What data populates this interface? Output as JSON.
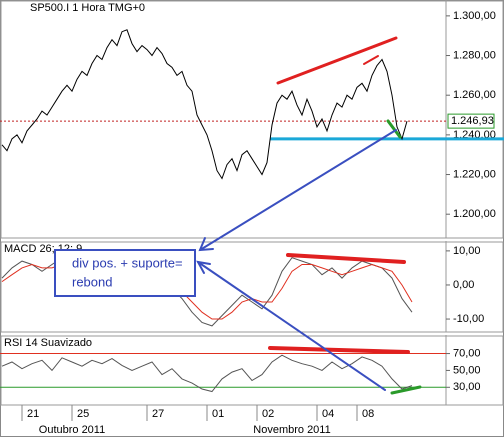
{
  "chart_data": [
    {
      "type": "line",
      "title": "SP500.I 1 Hora TMG+0",
      "xlim": [
        0,
        82
      ],
      "ylim": [
        1188,
        1308
      ],
      "yticks": [
        {
          "value": 1300,
          "label": "1.300,00"
        },
        {
          "value": 1280,
          "label": "1.280,00"
        },
        {
          "value": 1260,
          "label": "1.260,00"
        },
        {
          "value": 1240,
          "label": "1.240,00"
        },
        {
          "value": 1220,
          "label": "1.220,00"
        },
        {
          "value": 1200,
          "label": "1.200,00"
        }
      ],
      "x": [
        0,
        1,
        2,
        3,
        4,
        5,
        6,
        7,
        8,
        9,
        10,
        11,
        12,
        13,
        14,
        15,
        16,
        17,
        18,
        19,
        20,
        21,
        22,
        23,
        24,
        25,
        26,
        27,
        28,
        29,
        30,
        31,
        32,
        33,
        34,
        35,
        36,
        37,
        38,
        39,
        40,
        41,
        42,
        43,
        44,
        45,
        46,
        47,
        48,
        49,
        50,
        51,
        52,
        53,
        54,
        55,
        56,
        57,
        58,
        59,
        60,
        61,
        62,
        63,
        64,
        65,
        66,
        67,
        68,
        69,
        70,
        71,
        72,
        73,
        74,
        75,
        76,
        77,
        78,
        79,
        80,
        81
      ],
      "series": [
        {
          "color": "#000000",
          "values": [
            1235,
            1232,
            1238,
            1240,
            1236,
            1242,
            1245,
            1248,
            1252,
            1250,
            1254,
            1258,
            1262,
            1265,
            1262,
            1268,
            1272,
            1270,
            1276,
            1280,
            1278,
            1284,
            1288,
            1285,
            1292,
            1293,
            1286,
            1282,
            1285,
            1283,
            1280,
            1284,
            1281,
            1276,
            1274,
            1270,
            1272,
            1265,
            1262,
            1250,
            1245,
            1240,
            1232,
            1222,
            1218,
            1225,
            1228,
            1222,
            1230,
            1232,
            1228,
            1224,
            1220,
            1226,
            1245,
            1256,
            1260,
            1258,
            1262,
            1255,
            1250,
            1258,
            1252,
            1244,
            1248,
            1242,
            1250,
            1256,
            1254,
            1260,
            1258,
            1264,
            1266,
            1262,
            1270,
            1275,
            1278,
            1272,
            1260,
            1244,
            1238,
            1246.93
          ]
        }
      ],
      "last_price": {
        "value": 1246.93,
        "label": "1.246,93"
      },
      "support": 1238
    },
    {
      "type": "line",
      "title": "MACD 26; 12; 9",
      "xlim": [
        0,
        82
      ],
      "ylim": [
        -13.8,
        12.9
      ],
      "yticks": [
        {
          "value": 10,
          "label": "10,00"
        },
        {
          "value": 0,
          "label": "0,00"
        },
        {
          "value": -10,
          "label": "-10,00"
        }
      ],
      "x": [
        0,
        2,
        4,
        6,
        8,
        10,
        12,
        14,
        16,
        18,
        20,
        22,
        24,
        26,
        28,
        30,
        32,
        34,
        36,
        38,
        40,
        42,
        44,
        46,
        48,
        50,
        52,
        54,
        56,
        58,
        60,
        62,
        64,
        66,
        68,
        70,
        72,
        74,
        76,
        78,
        80,
        82
      ],
      "series": [
        {
          "color": "#555555",
          "values": [
            2,
            5,
            7,
            6,
            4,
            6,
            8,
            7,
            5,
            8,
            9,
            7,
            4,
            2,
            3,
            1,
            -2,
            -1,
            -4,
            -8,
            -11,
            -12,
            -9,
            -6,
            -3,
            -5,
            -7,
            -3,
            4,
            8,
            7,
            6,
            3,
            5,
            2,
            5,
            7,
            6,
            5,
            2,
            -4,
            -8
          ]
        },
        {
          "color": "#e03020",
          "values": [
            1,
            3,
            5,
            6,
            5,
            5,
            6,
            7,
            6,
            7,
            8,
            8,
            6,
            4,
            3,
            2,
            0,
            -1,
            -2,
            -5,
            -8,
            -10,
            -10,
            -8,
            -5,
            -4,
            -5,
            -5,
            -1,
            4,
            6,
            6,
            5,
            4,
            3,
            4,
            5,
            6,
            5,
            4,
            0,
            -5
          ]
        }
      ],
      "annotations": [
        "div pos. + suporte=",
        "rebond"
      ]
    },
    {
      "type": "line",
      "title": "RSI 14 Suavizado",
      "xlim": [
        0,
        82
      ],
      "ylim": [
        9,
        92
      ],
      "yticks": [
        {
          "value": 70,
          "label": "70,00"
        },
        {
          "value": 50,
          "label": "50,00"
        },
        {
          "value": 30,
          "label": "30,00"
        }
      ],
      "levels": [
        70,
        30
      ],
      "level_colors": [
        "#e03020",
        "#2a9a2a"
      ],
      "x": [
        0,
        2,
        4,
        6,
        8,
        10,
        12,
        14,
        16,
        18,
        20,
        22,
        24,
        26,
        28,
        30,
        32,
        34,
        36,
        38,
        40,
        42,
        44,
        46,
        48,
        50,
        52,
        54,
        56,
        58,
        60,
        62,
        64,
        66,
        68,
        70,
        72,
        74,
        76,
        78,
        80,
        82
      ],
      "series": [
        {
          "color": "#555555",
          "values": [
            55,
            60,
            52,
            58,
            62,
            50,
            65,
            60,
            55,
            62,
            58,
            64,
            56,
            50,
            55,
            60,
            45,
            52,
            40,
            35,
            28,
            25,
            40,
            48,
            52,
            38,
            45,
            60,
            68,
            62,
            58,
            55,
            50,
            60,
            52,
            58,
            66,
            62,
            55,
            40,
            28,
            32
          ]
        }
      ],
      "xticks": [
        {
          "value": 4,
          "label": "21"
        },
        {
          "value": 14,
          "label": "25"
        },
        {
          "value": 29,
          "label": "27"
        },
        {
          "value": 41,
          "label": "01"
        },
        {
          "value": 51,
          "label": "02"
        },
        {
          "value": 63,
          "label": "04"
        },
        {
          "value": 71,
          "label": "08"
        }
      ],
      "x_groups": [
        {
          "value": 14,
          "label": "Outubro 2011"
        },
        {
          "value": 58,
          "label": "Novembro 2011"
        }
      ]
    }
  ]
}
